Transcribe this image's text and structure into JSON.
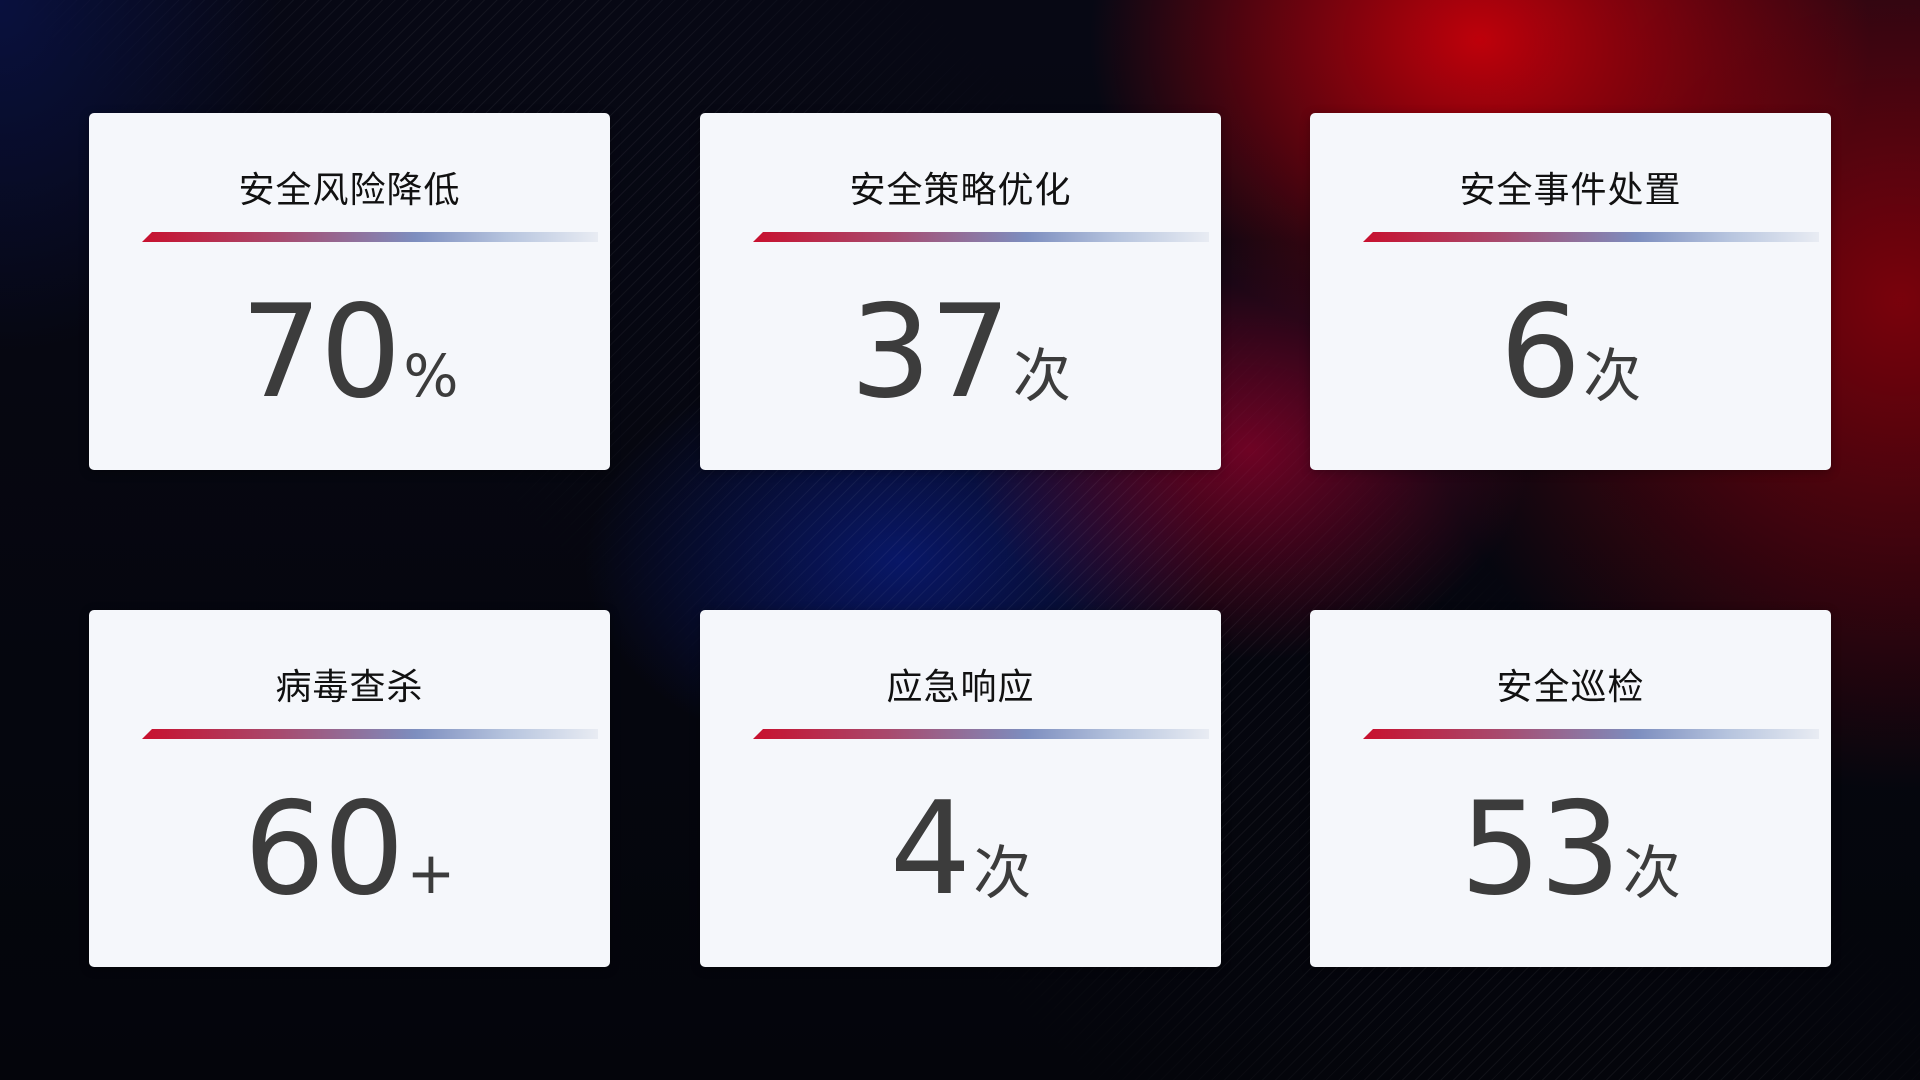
{
  "cards": [
    {
      "title": "安全风险降低",
      "value": "70",
      "unit": "%"
    },
    {
      "title": "安全策略优化",
      "value": "37",
      "unit": "次"
    },
    {
      "title": "安全事件处置",
      "value": "6",
      "unit": "次"
    },
    {
      "title": "病毒查杀",
      "value": "60",
      "unit": "+"
    },
    {
      "title": "应急响应",
      "value": "4",
      "unit": "次"
    },
    {
      "title": "安全巡检",
      "value": "53",
      "unit": "次"
    }
  ],
  "colors": {
    "accent_red": "#c8102e",
    "accent_blue": "#7d8ebf",
    "card_bg": "#f5f7fb"
  }
}
